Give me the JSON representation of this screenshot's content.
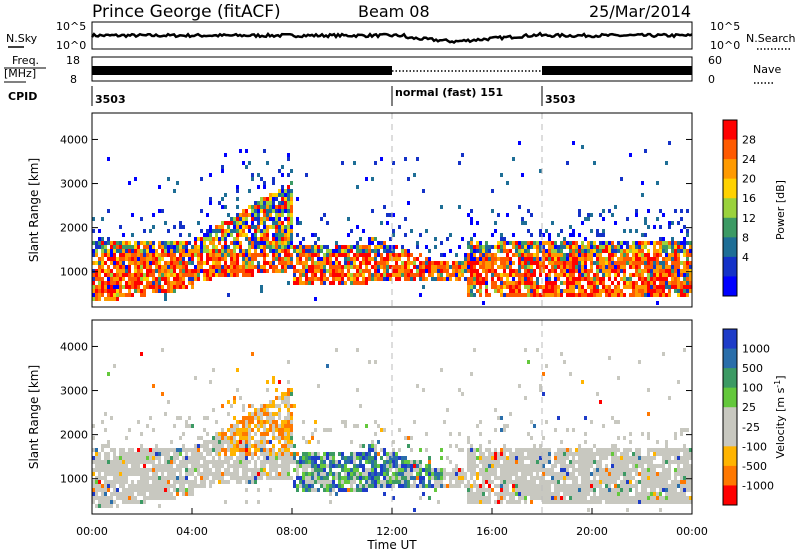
{
  "header": {
    "title": "Prince George (fitACF)",
    "beam": "Beam 08",
    "date": "25/Mar/2014"
  },
  "top_panels": {
    "nsky_label": "N.Sky",
    "nsearch_label": "N.Search",
    "nsky_ticks": [
      "10^5",
      "10^0"
    ],
    "nsearch_ticks": [
      "10^5",
      "10^0"
    ],
    "freq_label_1": "Freq.",
    "freq_label_2": "[MHz]",
    "freq_ticks": [
      "18",
      "8"
    ],
    "nave_label": "Nave",
    "nave_ticks": [
      "60",
      "0"
    ],
    "cpid_label": "CPID",
    "cpid_segments": [
      {
        "label": "3503",
        "start_hour": 0
      },
      {
        "label": "normal (fast) 151",
        "start_hour": 12
      },
      {
        "label": "3503",
        "start_hour": 18
      }
    ]
  },
  "colorbars": {
    "power": {
      "label": "Power [dB]",
      "ticks": [
        "28",
        "24",
        "20",
        "16",
        "12",
        "8",
        "4"
      ],
      "colors": [
        "#ff0000",
        "#ff5a00",
        "#ff9a00",
        "#ffd200",
        "#9ad23c",
        "#3c9a64",
        "#1e6e96",
        "#1432c8",
        "#0000ff"
      ]
    },
    "velocity": {
      "label": "Velocity [m s",
      "label_sup": "-1",
      "label_end": "]",
      "ticks": [
        "1000",
        "500",
        "100",
        "25",
        "-25",
        "-100",
        "-500",
        "-1000"
      ],
      "colors": [
        "#1e3cc8",
        "#2a6eaa",
        "#3c9a64",
        "#64c83c",
        "#c8c8c0",
        "#c8c8c0",
        "#ffb400",
        "#ff7800",
        "#ff0000"
      ]
    }
  },
  "chart_data": [
    {
      "type": "heatmap",
      "title": "Power",
      "ylabel": "Slant Range [km]",
      "xlabel": "Time UT",
      "xlim": [
        0,
        24
      ],
      "ylim": [
        200,
        4600
      ],
      "yticks": [
        "1000",
        "2000",
        "3000",
        "4000"
      ],
      "xticks": [
        "00:00",
        "04:00",
        "08:00",
        "12:00",
        "16:00",
        "20:00",
        "00:00"
      ],
      "vlines_hours": [
        12,
        18
      ]
    },
    {
      "type": "heatmap",
      "title": "Velocity",
      "ylabel": "Slant Range [km]",
      "xlabel": "Time UT",
      "xlim": [
        0,
        24
      ],
      "ylim": [
        200,
        4600
      ],
      "yticks": [
        "1000",
        "2000",
        "3000",
        "4000"
      ],
      "xticks": [
        "00:00",
        "04:00",
        "08:00",
        "12:00",
        "16:00",
        "20:00",
        "00:00"
      ],
      "vlines_hours": [
        12,
        18
      ]
    }
  ]
}
